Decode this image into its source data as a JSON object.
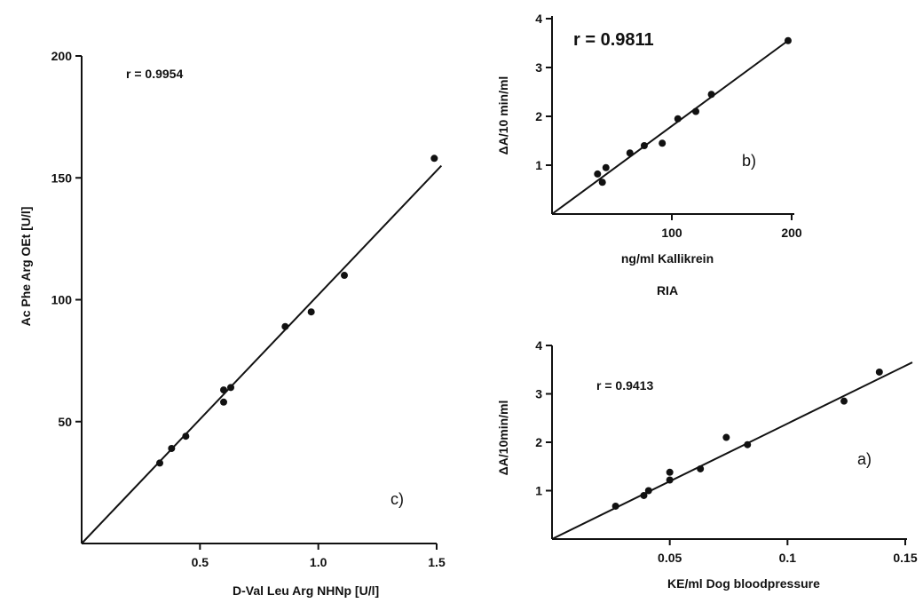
{
  "chart_data": [
    {
      "type": "scatter",
      "panel_label": "c)",
      "r_label": "r = 0.9954",
      "xlabel": "D-Val Leu Arg NHNp [U/l]",
      "ylabel": "Ac Phe Arg OEt [U/l]",
      "xlim": [
        0,
        1.5
      ],
      "ylim": [
        0,
        200
      ],
      "xticks": [
        0.5,
        1.0,
        1.5
      ],
      "xtick_labels": [
        "0.5",
        "1.0",
        "1.5"
      ],
      "yticks": [
        50,
        100,
        150,
        200
      ],
      "ytick_labels": [
        "50",
        "100",
        "150",
        "200"
      ],
      "points": [
        {
          "x": 0.33,
          "y": 33
        },
        {
          "x": 0.38,
          "y": 39
        },
        {
          "x": 0.44,
          "y": 44
        },
        {
          "x": 0.6,
          "y": 58
        },
        {
          "x": 0.6,
          "y": 63
        },
        {
          "x": 0.63,
          "y": 64
        },
        {
          "x": 0.86,
          "y": 89
        },
        {
          "x": 0.97,
          "y": 95
        },
        {
          "x": 1.11,
          "y": 110
        },
        {
          "x": 1.49,
          "y": 158
        }
      ],
      "fit_line": {
        "x": [
          0,
          1.52
        ],
        "y": [
          0,
          155
        ]
      }
    },
    {
      "type": "scatter",
      "panel_label": "b)",
      "r_label": "r = 0.9811",
      "xlabel": "ng/ml Kallikrein",
      "xlabel2": "RIA",
      "ylabel": "ΔA/10 min/ml",
      "xlim": [
        0,
        200
      ],
      "ylim": [
        0,
        4
      ],
      "xticks": [
        100,
        200
      ],
      "xtick_labels": [
        "100",
        "200"
      ],
      "yticks": [
        1,
        2,
        3,
        4
      ],
      "ytick_labels": [
        "1",
        "2",
        "3",
        "4"
      ],
      "points": [
        {
          "x": 38,
          "y": 0.82
        },
        {
          "x": 42,
          "y": 0.65
        },
        {
          "x": 45,
          "y": 0.95
        },
        {
          "x": 65,
          "y": 1.25
        },
        {
          "x": 77,
          "y": 1.4
        },
        {
          "x": 92,
          "y": 1.45
        },
        {
          "x": 105,
          "y": 1.95
        },
        {
          "x": 120,
          "y": 2.1
        },
        {
          "x": 133,
          "y": 2.45
        },
        {
          "x": 197,
          "y": 3.55
        }
      ],
      "fit_line": {
        "x": [
          0,
          197
        ],
        "y": [
          0,
          3.55
        ]
      }
    },
    {
      "type": "scatter",
      "panel_label": "a)",
      "r_label": "r = 0.9413",
      "xlabel": "KE/ml Dog bloodpressure",
      "ylabel": "ΔA/10min/ml",
      "xlim": [
        0,
        0.15
      ],
      "ylim": [
        0,
        4
      ],
      "xticks": [
        0.05,
        0.1,
        0.15
      ],
      "xtick_labels": [
        "0.05",
        "0.1",
        "0.15"
      ],
      "yticks": [
        1,
        2,
        3,
        4
      ],
      "ytick_labels": [
        "1",
        "2",
        "3",
        "4"
      ],
      "points": [
        {
          "x": 0.027,
          "y": 0.68
        },
        {
          "x": 0.039,
          "y": 0.9
        },
        {
          "x": 0.041,
          "y": 1.0
        },
        {
          "x": 0.05,
          "y": 1.22
        },
        {
          "x": 0.05,
          "y": 1.38
        },
        {
          "x": 0.063,
          "y": 1.45
        },
        {
          "x": 0.074,
          "y": 2.1
        },
        {
          "x": 0.083,
          "y": 1.95
        },
        {
          "x": 0.124,
          "y": 2.85
        },
        {
          "x": 0.139,
          "y": 3.45
        }
      ],
      "fit_line": {
        "x": [
          0,
          0.153
        ],
        "y": [
          0,
          3.65
        ]
      }
    }
  ]
}
